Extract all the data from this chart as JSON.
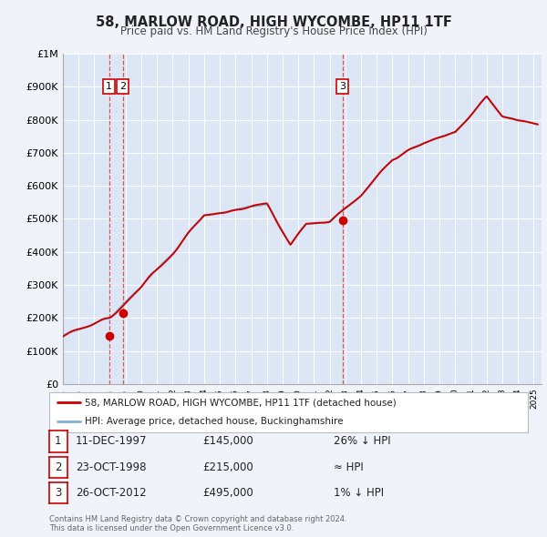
{
  "title": "58, MARLOW ROAD, HIGH WYCOMBE, HP11 1TF",
  "subtitle": "Price paid vs. HM Land Registry's House Price Index (HPI)",
  "hpi_label": "HPI: Average price, detached house, Buckinghamshire",
  "price_label": "58, MARLOW ROAD, HIGH WYCOMBE, HP11 1TF (detached house)",
  "background_color": "#f0f4fa",
  "plot_bg_color": "#dce6f5",
  "grid_color": "#ffffff",
  "hpi_color": "#7cafd6",
  "price_color": "#cc0000",
  "marker_color": "#cc0000",
  "vline_color": "#dd3333",
  "ylim": [
    0,
    1000000
  ],
  "xlim_start": 1995.0,
  "xlim_end": 2025.5,
  "transactions": [
    {
      "label": "1",
      "date": "11-DEC-1997",
      "year": 1997.94,
      "price": 145000,
      "hpi_compare": "26% ↓ HPI"
    },
    {
      "label": "2",
      "date": "23-OCT-1998",
      "year": 1998.81,
      "price": 215000,
      "hpi_compare": "≈ HPI"
    },
    {
      "label": "3",
      "date": "26-OCT-2012",
      "year": 2012.81,
      "price": 495000,
      "hpi_compare": "1% ↓ HPI"
    }
  ],
  "footer": "Contains HM Land Registry data © Crown copyright and database right 2024.\nThis data is licensed under the Open Government Licence v3.0.",
  "ytick_labels": [
    "£0",
    "£100K",
    "£200K",
    "£300K",
    "£400K",
    "£500K",
    "£600K",
    "£700K",
    "£800K",
    "£900K",
    "£1M"
  ],
  "ytick_values": [
    0,
    100000,
    200000,
    300000,
    400000,
    500000,
    600000,
    700000,
    800000,
    900000,
    1000000
  ],
  "table_rows": [
    {
      "num": "1",
      "date": "11-DEC-1997",
      "price": "£145,000",
      "comp": "26% ↓ HPI"
    },
    {
      "num": "2",
      "date": "23-OCT-1998",
      "price": "£215,000",
      "comp": "≈ HPI"
    },
    {
      "num": "3",
      "date": "26-OCT-2012",
      "price": "£495,000",
      "comp": "1% ↓ HPI"
    }
  ]
}
